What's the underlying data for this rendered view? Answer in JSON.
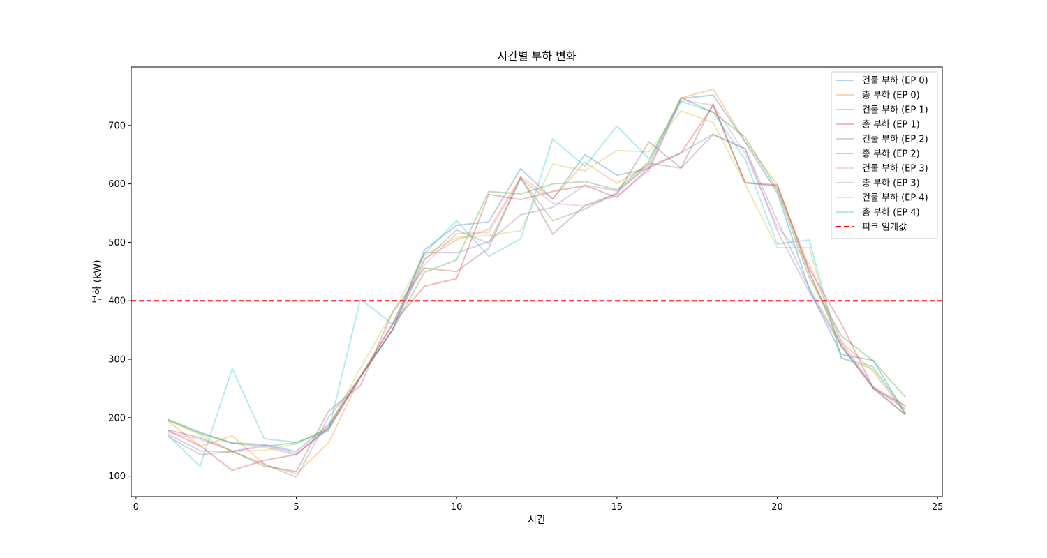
{
  "chart_data": {
    "type": "line",
    "title": "시간별 부하 변화",
    "xlabel": "시간",
    "ylabel": "부하 (kW)",
    "xlim": [
      -0.15,
      25.15
    ],
    "ylim": [
      65,
      800
    ],
    "xticks": [
      0,
      5,
      10,
      15,
      20,
      25
    ],
    "yticks": [
      100,
      200,
      300,
      400,
      500,
      600,
      700
    ],
    "grid": false,
    "legend_position": "top-right",
    "x": [
      1,
      2,
      3,
      4,
      5,
      6,
      7,
      8,
      9,
      10,
      11,
      12,
      13,
      14,
      15,
      16,
      17,
      18,
      19,
      20,
      21,
      22,
      23,
      24
    ],
    "series": [
      {
        "name": "건물 부하 (EP 0)",
        "color": "#1f77b4",
        "values": [
          197,
          175,
          157,
          154,
          142,
          188,
          270,
          350,
          487,
          529,
          535,
          626,
          574,
          650,
          615,
          626,
          746,
          752,
          672,
          585,
          420,
          308,
          298,
          206
        ]
      },
      {
        "name": "총 부하 (EP 0)",
        "color": "#ff7f0e",
        "values": [
          194,
          151,
          169,
          120,
          104,
          157,
          270,
          360,
          472,
          504,
          522,
          612,
          575,
          637,
          601,
          633,
          747,
          762,
          673,
          599,
          449,
          330,
          279,
          206
        ]
      },
      {
        "name": "건물 부하 (EP 1)",
        "color": "#2ca02c",
        "values": [
          196,
          173,
          156,
          151,
          157,
          180,
          270,
          350,
          449,
          470,
          587,
          583,
          600,
          604,
          590,
          638,
          748,
          722,
          680,
          590,
          440,
          340,
          297,
          235
        ]
      },
      {
        "name": "총 부하 (EP 1)",
        "color": "#d62728",
        "values": [
          178,
          152,
          110,
          127,
          137,
          183,
          270,
          360,
          425,
          438,
          582,
          573,
          587,
          597,
          577,
          627,
          653,
          734,
          602,
          598,
          455,
          361,
          250,
          220
        ]
      },
      {
        "name": "건물 부하 (EP 2)",
        "color": "#9467bd",
        "values": [
          172,
          143,
          142,
          153,
          138,
          180,
          270,
          350,
          483,
          482,
          501,
          547,
          560,
          598,
          588,
          630,
          653,
          685,
          660,
          520,
          415,
          323,
          252,
          214
        ]
      },
      {
        "name": "총 부하 (EP 2)",
        "color": "#8c564b",
        "values": [
          179,
          166,
          143,
          117,
          108,
          211,
          255,
          380,
          456,
          450,
          490,
          612,
          514,
          563,
          583,
          672,
          627,
          737,
          602,
          596,
          449,
          322,
          250,
          205
        ]
      },
      {
        "name": "건물 부하 (EP 3)",
        "color": "#e377c2",
        "values": [
          175,
          163,
          143,
          150,
          136,
          185,
          270,
          360,
          462,
          515,
          517,
          609,
          567,
          562,
          580,
          623,
          743,
          735,
          652,
          527,
          464,
          330,
          253,
          220
        ]
      },
      {
        "name": "총 부하 (EP 3)",
        "color": "#7f7f7f",
        "values": [
          168,
          137,
          142,
          121,
          98,
          200,
          270,
          350,
          470,
          521,
          498,
          609,
          537,
          557,
          585,
          635,
          627,
          684,
          660,
          538,
          422,
          325,
          251,
          205
        ]
      },
      {
        "name": "건물 부하 (EP 4)",
        "color": "#bcbd22",
        "values": [
          195,
          171,
          142,
          144,
          155,
          183,
          285,
          380,
          478,
          508,
          512,
          520,
          634,
          622,
          657,
          655,
          725,
          705,
          600,
          491,
          491,
          302,
          283,
          213
        ]
      },
      {
        "name": "총 부하 (EP 4)",
        "color": "#17becf",
        "values": [
          170,
          117,
          284,
          164,
          158,
          177,
          403,
          360,
          481,
          537,
          476,
          506,
          677,
          630,
          699,
          643,
          741,
          723,
          642,
          497,
          504,
          302,
          287,
          207
        ]
      }
    ],
    "threshold": {
      "name": "피크 임계값",
      "value": 400,
      "color": "#ff0000",
      "style": "dashed"
    }
  }
}
